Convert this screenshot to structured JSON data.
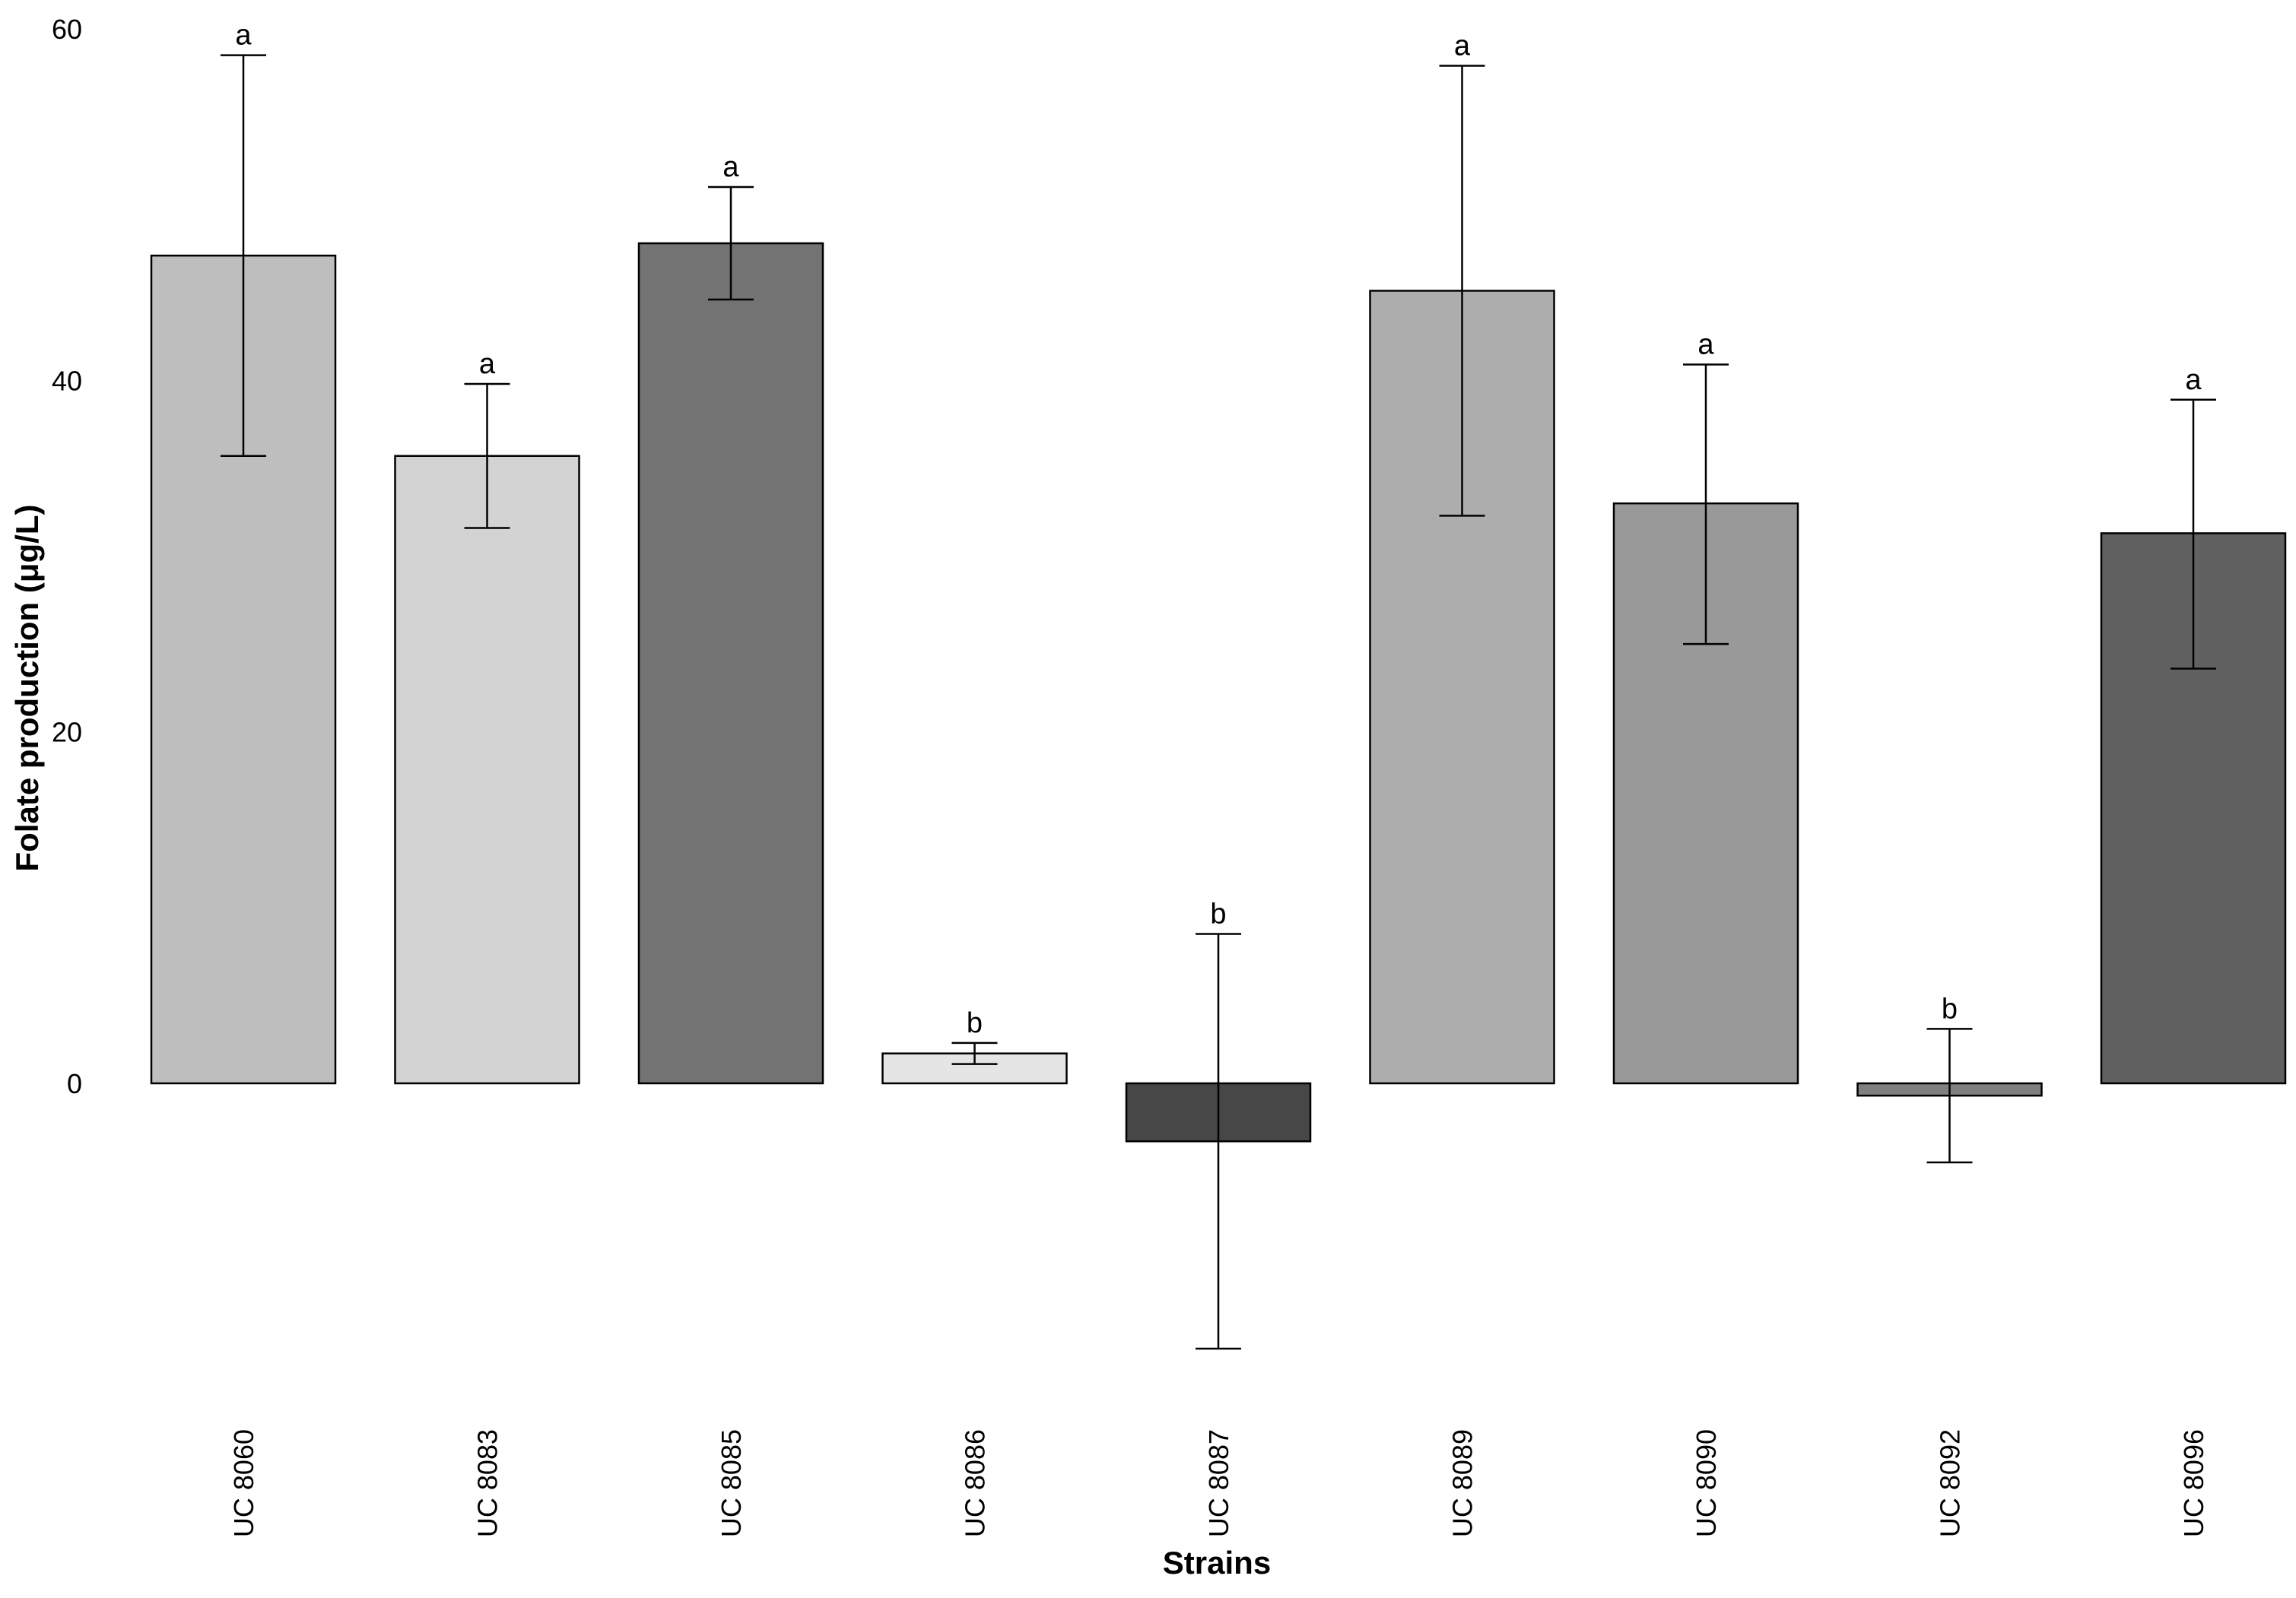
{
  "chart_data": {
    "type": "bar",
    "title": "",
    "xlabel": "Strains",
    "ylabel": "Folate production (μg/L)",
    "ylim": [
      -15,
      60
    ],
    "yticks": [
      0,
      20,
      40,
      60
    ],
    "grid": false,
    "legend": "none",
    "categories": [
      "UC 8060",
      "UC 8083",
      "UC 8085",
      "UC 8086",
      "UC 8087",
      "UC 8089",
      "UC 8090",
      "UC 8092",
      "UC 8096"
    ],
    "values": [
      47.1,
      35.7,
      47.8,
      1.7,
      -3.3,
      45.1,
      33.0,
      -0.7,
      31.3
    ],
    "error_low": [
      35.7,
      31.6,
      44.6,
      1.1,
      -15.1,
      32.3,
      25.0,
      -4.5,
      23.6
    ],
    "error_high": [
      58.5,
      39.8,
      51.0,
      2.3,
      8.5,
      57.9,
      40.9,
      3.1,
      38.9
    ],
    "significance": [
      "a",
      "a",
      "a",
      "b",
      "b",
      "a",
      "a",
      "b",
      "a"
    ],
    "colors": [
      "#bebebe",
      "#d3d3d3",
      "#737373",
      "#e5e5e5",
      "#474747",
      "#adadad",
      "#999999",
      "#808080",
      "#616161"
    ]
  }
}
